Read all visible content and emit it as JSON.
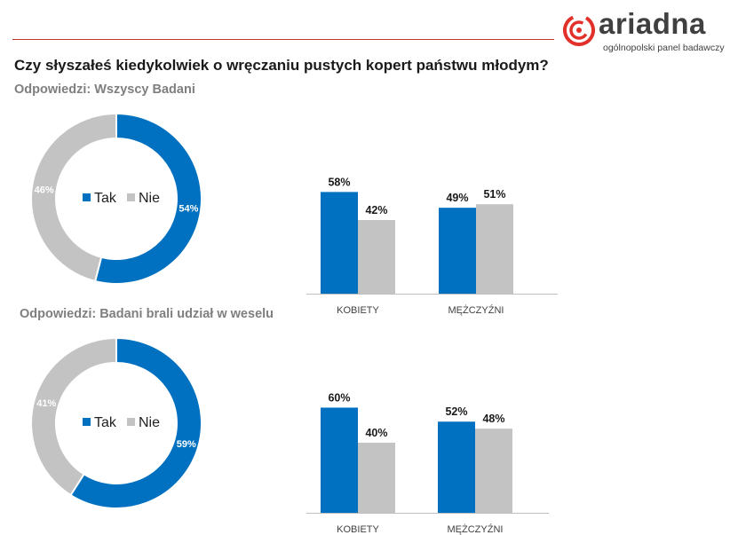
{
  "header": {
    "title": "Czy słyszałeś kiedykolwiek o wręczaniu pustych kopert państwu młodym?",
    "brand_name": "ariadna",
    "brand_tagline": "ogólnopolski panel badawczy"
  },
  "colors": {
    "tak": "#0070c0",
    "nie": "#c3c3c3",
    "accent_line": "#c0392b",
    "logo_red": "#e1312a"
  },
  "chart_data": [
    {
      "type": "pie",
      "subtitle": "Odpowiedzi: Wszyscy Badani",
      "legend": [
        "Tak",
        "Nie"
      ],
      "slices": [
        {
          "label": "Tak",
          "value": 54,
          "display": "54%"
        },
        {
          "label": "Nie",
          "value": 46,
          "display": "46%"
        }
      ]
    },
    {
      "type": "bar",
      "categories": [
        "KOBIETY",
        "MĘŻCZYŹNI"
      ],
      "series": [
        {
          "name": "Tak",
          "values": [
            58,
            49
          ],
          "labels": [
            "58%",
            "49%"
          ]
        },
        {
          "name": "Nie",
          "values": [
            42,
            51
          ],
          "labels": [
            "42%",
            "51%"
          ]
        }
      ],
      "ylim": [
        0,
        100
      ]
    },
    {
      "type": "pie",
      "subtitle": "Odpowiedzi: Badani brali udział w weselu",
      "legend": [
        "Tak",
        "Nie"
      ],
      "slices": [
        {
          "label": "Tak",
          "value": 59,
          "display": "59%"
        },
        {
          "label": "Nie",
          "value": 41,
          "display": "41%"
        }
      ]
    },
    {
      "type": "bar",
      "categories": [
        "KOBIETY",
        "MĘŻCZYŹNI"
      ],
      "series": [
        {
          "name": "Tak",
          "values": [
            60,
            52
          ],
          "labels": [
            "60%",
            "52%"
          ]
        },
        {
          "name": "Nie",
          "values": [
            40,
            48
          ],
          "labels": [
            "40%",
            "48%"
          ]
        }
      ],
      "ylim": [
        0,
        100
      ]
    }
  ]
}
